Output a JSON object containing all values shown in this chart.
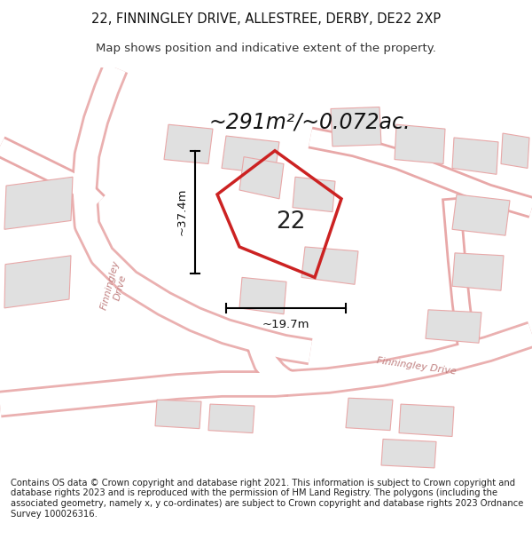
{
  "title_line1": "22, FINNINGLEY DRIVE, ALLESTREE, DERBY, DE22 2XP",
  "title_line2": "Map shows position and indicative extent of the property.",
  "area_label": "~291m²/~0.072ac.",
  "number_label": "22",
  "dim_horizontal": "~19.7m",
  "dim_vertical": "~37.4m",
  "road_label_left": "Finningley\nDrive",
  "road_label_right": "Finningley Drive",
  "footer_text": "Contains OS data © Crown copyright and database right 2021. This information is subject to Crown copyright and database rights 2023 and is reproduced with the permission of HM Land Registry. The polygons (including the associated geometry, namely x, y co-ordinates) are subject to Crown copyright and database rights 2023 Ordnance Survey 100026316.",
  "bg_color": "#ffffff",
  "map_bg": "#ffffff",
  "road_color": "#e8a8a8",
  "plot_color": "#cc2222",
  "building_color": "#e0e0e0",
  "building_edge": "#e8a8a8",
  "title_fontsize": 10.5,
  "subtitle_fontsize": 9.5,
  "footer_fontsize": 7.2,
  "area_fontsize": 17
}
